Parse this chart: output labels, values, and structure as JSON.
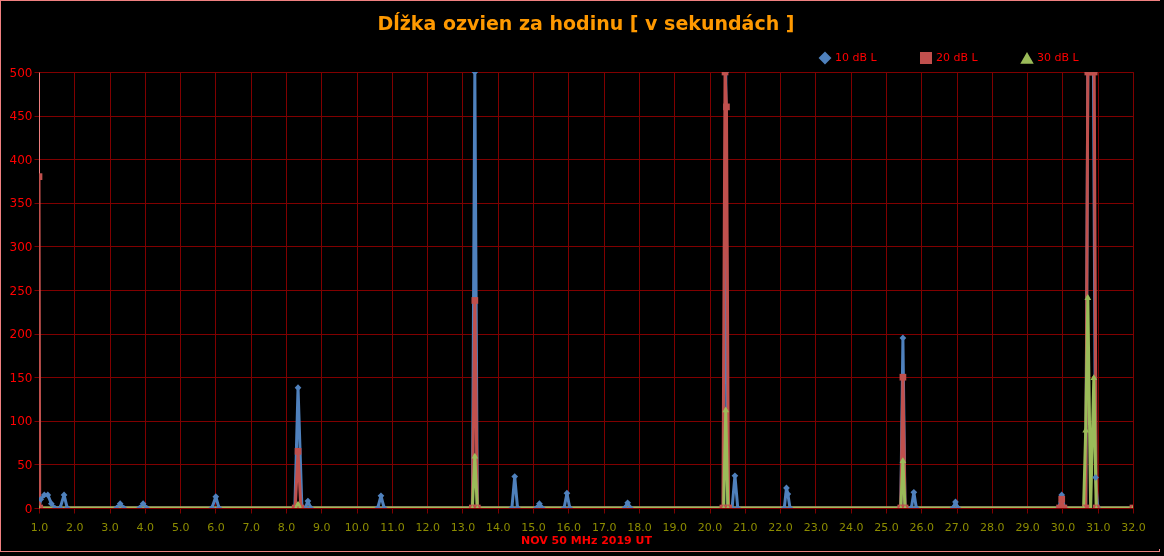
{
  "chart_data": {
    "type": "line",
    "title": "Dĺžka ozvien za hodinu [ v sekundách ]",
    "xlabel": "NOV 50 MHz  2019  UT",
    "xlim": [
      1,
      32
    ],
    "xticks": [
      {
        "value": 1,
        "label": "1.0"
      },
      {
        "value": 2,
        "label": "2.0"
      },
      {
        "value": 3,
        "label": "3.0"
      },
      {
        "value": 4,
        "label": "4.0"
      },
      {
        "value": 5,
        "label": "5.0"
      },
      {
        "value": 6,
        "label": "6.0"
      },
      {
        "value": 7,
        "label": "7.0"
      },
      {
        "value": 8,
        "label": "8.0"
      },
      {
        "value": 9,
        "label": "9.0"
      },
      {
        "value": 10,
        "label": "10.0"
      },
      {
        "value": 11,
        "label": "11.0"
      },
      {
        "value": 12,
        "label": "12.0"
      },
      {
        "value": 13,
        "label": "13.0"
      },
      {
        "value": 14,
        "label": "14.0"
      },
      {
        "value": 15,
        "label": "15.0"
      },
      {
        "value": 16,
        "label": "16.0"
      },
      {
        "value": 17,
        "label": "17.0"
      },
      {
        "value": 18,
        "label": "18.0"
      },
      {
        "value": 19,
        "label": "19.0"
      },
      {
        "value": 20,
        "label": "20.0"
      },
      {
        "value": 21,
        "label": "21.0"
      },
      {
        "value": 22,
        "label": "22.0"
      },
      {
        "value": 23,
        "label": "23.0"
      },
      {
        "value": 24,
        "label": "24.0"
      },
      {
        "value": 25,
        "label": "25.0"
      },
      {
        "value": 26,
        "label": "26.0"
      },
      {
        "value": 27,
        "label": "27.0"
      },
      {
        "value": 28,
        "label": "28.0"
      },
      {
        "value": 29,
        "label": "29.0"
      },
      {
        "value": 30,
        "label": "30.0"
      },
      {
        "value": 31,
        "label": "31.0"
      },
      {
        "value": 32,
        "label": "32.0"
      }
    ],
    "ylim": [
      0,
      500
    ],
    "yticks": [
      0,
      50,
      100,
      150,
      200,
      250,
      300,
      350,
      400,
      450,
      500
    ],
    "grid": true,
    "legend": "top right",
    "series": [
      {
        "name": "10 dB L",
        "color": "#4f81bd",
        "marker": "diamond",
        "x": [
          1.0,
          1.05,
          1.15,
          1.25,
          1.35,
          1.45,
          1.6,
          1.71,
          1.8,
          3.2,
          3.3,
          3.4,
          3.85,
          3.95,
          4.05,
          5.9,
          6.01,
          6.1,
          8.25,
          8.34,
          8.45,
          8.55,
          8.62,
          8.7,
          10.6,
          10.69,
          10.78,
          13.28,
          13.35,
          13.42,
          14.4,
          14.48,
          14.56,
          15.1,
          15.18,
          15.26,
          15.88,
          15.96,
          16.04,
          17.6,
          17.68,
          17.76,
          20.4,
          20.46,
          20.52,
          20.64,
          20.72,
          20.8,
          22.12,
          22.18,
          22.22,
          22.28,
          25.42,
          25.48,
          25.54,
          25.72,
          25.79,
          25.86,
          26.9,
          26.97,
          27.04,
          29.9,
          29.98,
          30.06,
          30.66,
          30.72,
          30.8,
          30.88,
          30.94,
          31.0,
          32.0
        ],
        "values": [
          0,
          10,
          15,
          15,
          5,
          0,
          0,
          15,
          0,
          0,
          5,
          0,
          0,
          5,
          0,
          0,
          13,
          0,
          0,
          138,
          0,
          0,
          8,
          0,
          0,
          14,
          0,
          0,
          500,
          0,
          0,
          36,
          0,
          0,
          5,
          0,
          0,
          17,
          0,
          0,
          6,
          0,
          0,
          500,
          0,
          0,
          37,
          0,
          0,
          23,
          16,
          0,
          0,
          195,
          0,
          0,
          18,
          0,
          0,
          7,
          0,
          0,
          15,
          0,
          0,
          500,
          500,
          500,
          35,
          0,
          0
        ]
      },
      {
        "name": "20 dB L",
        "color": "#c0504d",
        "marker": "square",
        "x": [
          1.0,
          1.02,
          8.26,
          8.34,
          8.42,
          13.28,
          13.35,
          13.42,
          20.38,
          20.44,
          20.48,
          20.54,
          25.42,
          25.48,
          25.54,
          29.92,
          29.98,
          30.04,
          30.66,
          30.72,
          30.8,
          30.9,
          30.96,
          32.0
        ],
        "values": [
          380,
          0,
          0,
          65,
          0,
          0,
          238,
          0,
          0,
          500,
          460,
          0,
          0,
          150,
          0,
          0,
          10,
          0,
          0,
          500,
          500,
          500,
          0,
          0
        ]
      },
      {
        "name": "30 dB L",
        "color": "#9bbb59",
        "marker": "triangle",
        "x": [
          1.0,
          8.28,
          8.34,
          8.4,
          13.28,
          13.35,
          13.42,
          20.4,
          20.46,
          20.52,
          25.42,
          25.48,
          25.54,
          30.6,
          30.66,
          30.72,
          30.8,
          30.89,
          30.96,
          32.0
        ],
        "values": [
          0,
          0,
          5,
          0,
          0,
          60,
          0,
          0,
          113,
          0,
          0,
          55,
          0,
          0,
          90,
          242,
          0,
          150,
          0,
          0
        ]
      }
    ]
  }
}
